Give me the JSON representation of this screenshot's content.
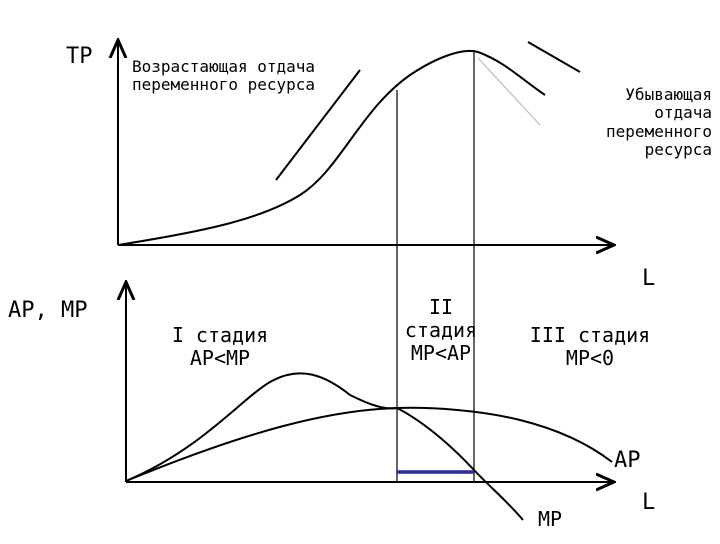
{
  "top_panel": {
    "y_axis_label": "TP",
    "x_axis_label": "L",
    "increasing_returns_label": "Возрастающая отдача\nпеременного ресурса",
    "diminishing_returns_label": "Убывающая\nотдача\nпеременного\nресурса"
  },
  "bottom_panel": {
    "y_axis_label": "AP, MP",
    "x_axis_label": "L",
    "stage1_label": "I стадия\nAP<MP",
    "stage2_label": "II\nстадия\nMP<AP",
    "stage3_label": "III стадия\nMP<0",
    "ap_curve_label": "AP",
    "mp_curve_label": "MP"
  },
  "colors": {
    "line": "#000000",
    "highlight_segment": "#2b2b9a",
    "tangent_faint": "#bbbbbb"
  }
}
